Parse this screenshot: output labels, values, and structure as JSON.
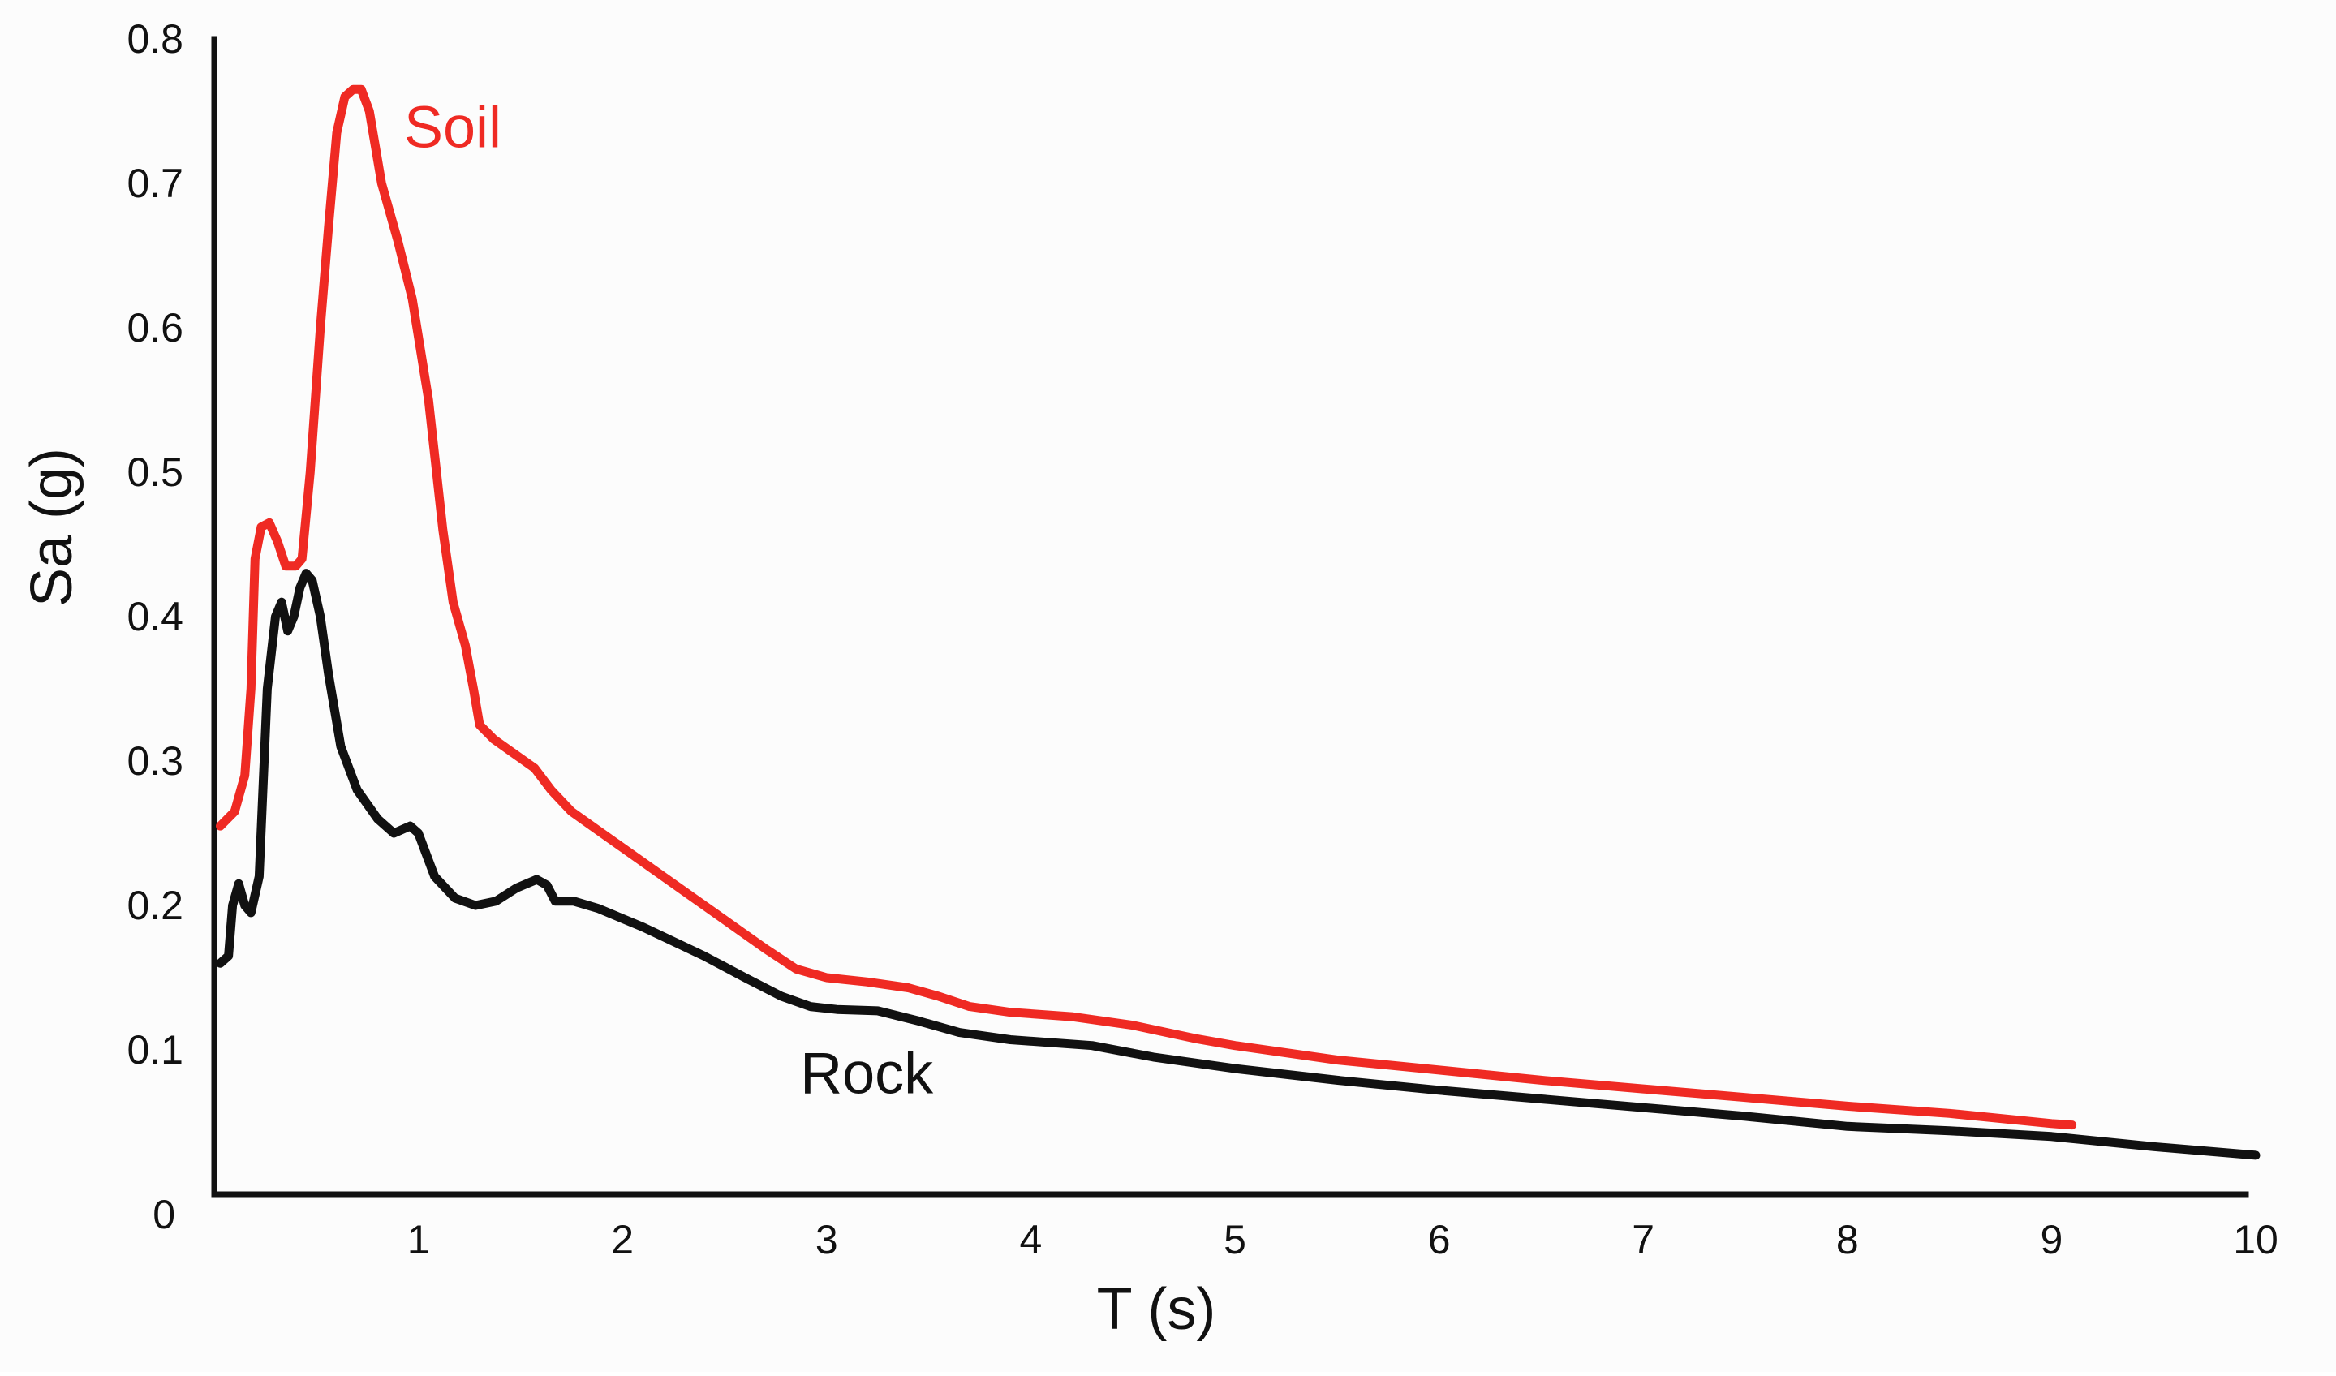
{
  "chart_data": {
    "type": "line",
    "title": "",
    "xlabel": "T (s)",
    "ylabel": "Sa (g)",
    "xlim": [
      0,
      10
    ],
    "ylim": [
      0,
      0.8
    ],
    "x_ticks": [
      0,
      1,
      2,
      3,
      4,
      5,
      6,
      7,
      8,
      9,
      10
    ],
    "x_tick_labels": [
      "",
      "1",
      "2",
      "3",
      "4",
      "5",
      "6",
      "7",
      "8",
      "9",
      "10"
    ],
    "y_ticks": [
      0,
      0.1,
      0.2,
      0.3,
      0.4,
      0.5,
      0.6,
      0.7,
      0.8
    ],
    "y_tick_labels": [
      "0",
      "0.1",
      "0.2",
      "0.3",
      "0.4",
      "0.5",
      "0.6",
      "0.7",
      "0.8"
    ],
    "grid": false,
    "legend": "inline labels",
    "series": [
      {
        "name": "Soil",
        "color": "#ef2a23",
        "points": [
          [
            0.03,
            0.255
          ],
          [
            0.1,
            0.265
          ],
          [
            0.15,
            0.29
          ],
          [
            0.18,
            0.35
          ],
          [
            0.2,
            0.44
          ],
          [
            0.23,
            0.462
          ],
          [
            0.27,
            0.465
          ],
          [
            0.31,
            0.452
          ],
          [
            0.35,
            0.435
          ],
          [
            0.4,
            0.435
          ],
          [
            0.43,
            0.44
          ],
          [
            0.47,
            0.5
          ],
          [
            0.52,
            0.6
          ],
          [
            0.56,
            0.67
          ],
          [
            0.6,
            0.735
          ],
          [
            0.64,
            0.76
          ],
          [
            0.68,
            0.765
          ],
          [
            0.72,
            0.765
          ],
          [
            0.76,
            0.75
          ],
          [
            0.82,
            0.7
          ],
          [
            0.9,
            0.66
          ],
          [
            0.97,
            0.62
          ],
          [
            1.05,
            0.55
          ],
          [
            1.12,
            0.46
          ],
          [
            1.17,
            0.41
          ],
          [
            1.23,
            0.38
          ],
          [
            1.27,
            0.35
          ],
          [
            1.3,
            0.325
          ],
          [
            1.37,
            0.315
          ],
          [
            1.47,
            0.305
          ],
          [
            1.57,
            0.295
          ],
          [
            1.65,
            0.28
          ],
          [
            1.75,
            0.265
          ],
          [
            1.9,
            0.25
          ],
          [
            2.1,
            0.23
          ],
          [
            2.35,
            0.205
          ],
          [
            2.5,
            0.19
          ],
          [
            2.7,
            0.17
          ],
          [
            2.85,
            0.156
          ],
          [
            3.0,
            0.15
          ],
          [
            3.2,
            0.147
          ],
          [
            3.4,
            0.143
          ],
          [
            3.55,
            0.137
          ],
          [
            3.7,
            0.13
          ],
          [
            3.9,
            0.126
          ],
          [
            4.2,
            0.123
          ],
          [
            4.5,
            0.117
          ],
          [
            4.8,
            0.108
          ],
          [
            5.0,
            0.103
          ],
          [
            5.5,
            0.093
          ],
          [
            6.0,
            0.086
          ],
          [
            6.5,
            0.079
          ],
          [
            7.0,
            0.073
          ],
          [
            7.5,
            0.067
          ],
          [
            8.0,
            0.061
          ],
          [
            8.5,
            0.056
          ],
          [
            9.0,
            0.049
          ],
          [
            9.1,
            0.048
          ]
        ]
      },
      {
        "name": "Rock",
        "color": "#111111",
        "points": [
          [
            0.03,
            0.16
          ],
          [
            0.07,
            0.165
          ],
          [
            0.09,
            0.2
          ],
          [
            0.12,
            0.215
          ],
          [
            0.15,
            0.2
          ],
          [
            0.18,
            0.195
          ],
          [
            0.22,
            0.22
          ],
          [
            0.26,
            0.35
          ],
          [
            0.3,
            0.4
          ],
          [
            0.33,
            0.41
          ],
          [
            0.36,
            0.39
          ],
          [
            0.39,
            0.4
          ],
          [
            0.42,
            0.42
          ],
          [
            0.45,
            0.43
          ],
          [
            0.48,
            0.425
          ],
          [
            0.52,
            0.4
          ],
          [
            0.56,
            0.36
          ],
          [
            0.62,
            0.31
          ],
          [
            0.7,
            0.28
          ],
          [
            0.8,
            0.26
          ],
          [
            0.88,
            0.25
          ],
          [
            0.96,
            0.255
          ],
          [
            1.0,
            0.25
          ],
          [
            1.08,
            0.22
          ],
          [
            1.18,
            0.205
          ],
          [
            1.28,
            0.2
          ],
          [
            1.38,
            0.203
          ],
          [
            1.48,
            0.212
          ],
          [
            1.58,
            0.218
          ],
          [
            1.63,
            0.214
          ],
          [
            1.67,
            0.203
          ],
          [
            1.76,
            0.203
          ],
          [
            1.88,
            0.198
          ],
          [
            2.1,
            0.185
          ],
          [
            2.4,
            0.165
          ],
          [
            2.6,
            0.15
          ],
          [
            2.78,
            0.137
          ],
          [
            2.92,
            0.13
          ],
          [
            3.05,
            0.128
          ],
          [
            3.25,
            0.127
          ],
          [
            3.45,
            0.12
          ],
          [
            3.65,
            0.112
          ],
          [
            3.9,
            0.107
          ],
          [
            4.3,
            0.103
          ],
          [
            4.6,
            0.095
          ],
          [
            5.0,
            0.087
          ],
          [
            5.5,
            0.079
          ],
          [
            6.0,
            0.072
          ],
          [
            6.5,
            0.066
          ],
          [
            7.0,
            0.06
          ],
          [
            7.5,
            0.054
          ],
          [
            8.0,
            0.047
          ],
          [
            8.5,
            0.044
          ],
          [
            9.0,
            0.04
          ],
          [
            9.5,
            0.033
          ],
          [
            10.0,
            0.027
          ]
        ]
      }
    ],
    "annotations": [
      {
        "series": "Soil",
        "text": "Soil",
        "anchor": [
          0.93,
          0.725
        ],
        "color": "#ef2a23"
      },
      {
        "series": "Rock",
        "text": "Rock",
        "anchor": [
          2.87,
          0.07
        ],
        "color": "#111111"
      }
    ]
  }
}
